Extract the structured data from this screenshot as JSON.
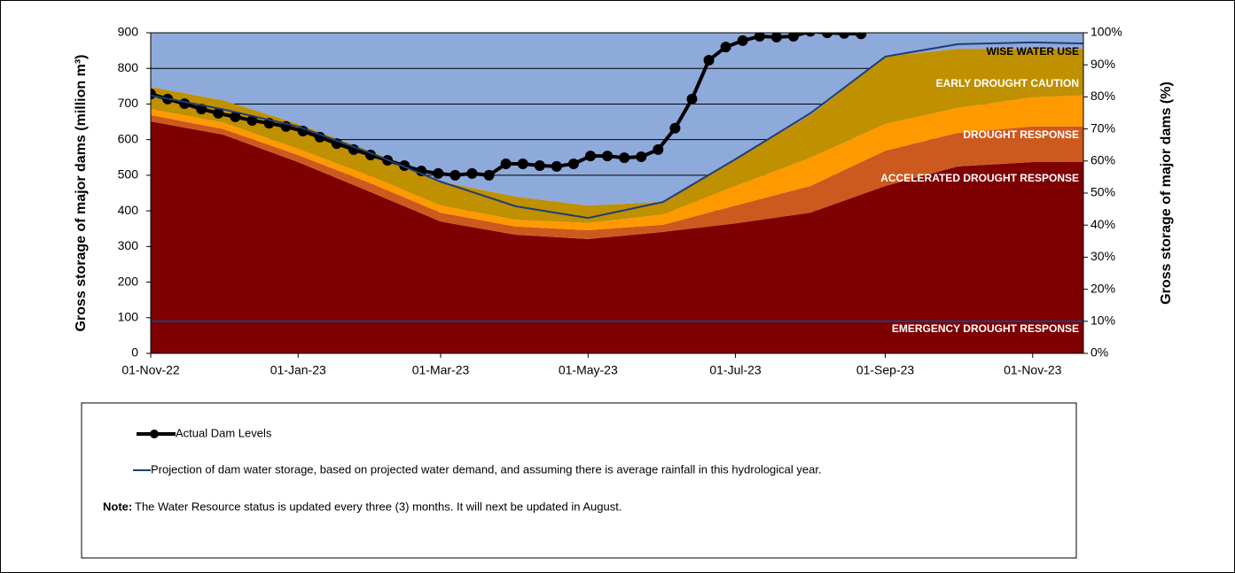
{
  "chart_data": {
    "type": "stacked_area_line",
    "y_label": "Gross storage of major dams (million m³)",
    "y2_label": "Gross storage of major dams (%)",
    "xlim": [
      "2022-11-01",
      "2023-11-22"
    ],
    "xticks": [
      {
        "value": "2022-11-01",
        "label": "01-Nov-22"
      },
      {
        "value": "2023-01-01",
        "label": "01-Jan-23"
      },
      {
        "value": "2023-03-01",
        "label": "01-Mar-23"
      },
      {
        "value": "2023-05-01",
        "label": "01-May-23"
      },
      {
        "value": "2023-07-01",
        "label": "01-Jul-23"
      },
      {
        "value": "2023-09-01",
        "label": "01-Sep-23"
      },
      {
        "value": "2023-11-01",
        "label": "01-Nov-23"
      }
    ],
    "ylim": [
      0,
      900
    ],
    "yticks": [
      0,
      100,
      200,
      300,
      400,
      500,
      600,
      700,
      800,
      900
    ],
    "y2lim": [
      0,
      100
    ],
    "y2ticks": [
      {
        "value": 0,
        "label": "0%"
      },
      {
        "value": 10,
        "label": "10%"
      },
      {
        "value": 20,
        "label": "20%"
      },
      {
        "value": 30,
        "label": "30%"
      },
      {
        "value": 40,
        "label": "40%"
      },
      {
        "value": 50,
        "label": "50%"
      },
      {
        "value": 60,
        "label": "60%"
      },
      {
        "value": 70,
        "label": "70%"
      },
      {
        "value": 80,
        "label": "80%"
      },
      {
        "value": 90,
        "label": "90%"
      },
      {
        "value": 100,
        "label": "100%"
      }
    ],
    "grid": true,
    "x": [
      "2022-11-01",
      "2022-12-01",
      "2023-01-01",
      "2023-02-01",
      "2023-03-01",
      "2023-04-01",
      "2023-05-01",
      "2023-06-01",
      "2023-07-01",
      "2023-08-01",
      "2023-09-01",
      "2023-10-01",
      "2023-11-01",
      "2023-11-22"
    ],
    "areas": [
      {
        "name": "EMERGENCY DROUGHT RESPONSE",
        "color": "#7f0000",
        "values": [
          651,
          614,
          537,
          450,
          370,
          333,
          321,
          341,
          365,
          395,
          470,
          525,
          537,
          537
        ]
      },
      {
        "name": "ACCELERATED DROUGHT RESPONSE",
        "color": "#cc5a1f",
        "values": [
          18,
          16,
          20,
          25,
          25,
          23,
          25,
          20,
          50,
          75,
          99,
          94,
          100,
          100
        ]
      },
      {
        "name": "DROUGHT RESPONSE",
        "color": "#ff9900",
        "values": [
          17,
          18,
          17,
          20,
          20,
          19,
          20,
          29,
          55,
          79,
          75,
          70,
          82,
          87
        ]
      },
      {
        "name": "EARLY DROUGHT CAUTION",
        "color": "#bf9000",
        "values": [
          62,
          62,
          70,
          70,
          67,
          65,
          49,
          35,
          75,
          120,
          189,
          166,
          136,
          131
        ]
      },
      {
        "name": "WISE WATER USE",
        "color": "#8eaadb",
        "values": [
          152,
          190,
          256,
          335,
          418,
          460,
          485,
          475,
          355,
          231,
          67,
          45,
          45,
          45
        ]
      }
    ],
    "reference_line": {
      "value": 90,
      "color": "#1f3d7a"
    },
    "series": [
      {
        "name": "Actual Dam Levels",
        "color": "#000000",
        "markers": true,
        "x": [
          "2022-11-01",
          "2022-11-08",
          "2022-11-15",
          "2022-11-22",
          "2022-11-29",
          "2022-12-06",
          "2022-12-13",
          "2022-12-20",
          "2022-12-27",
          "2023-01-03",
          "2023-01-10",
          "2023-01-17",
          "2023-01-24",
          "2023-01-31",
          "2023-02-07",
          "2023-02-14",
          "2023-02-21",
          "2023-02-28",
          "2023-03-07",
          "2023-03-14",
          "2023-03-21",
          "2023-03-28",
          "2023-04-04",
          "2023-04-11",
          "2023-04-18",
          "2023-04-25",
          "2023-05-02",
          "2023-05-09",
          "2023-05-16",
          "2023-05-23",
          "2023-05-30",
          "2023-06-06",
          "2023-06-13",
          "2023-06-20",
          "2023-06-27",
          "2023-07-04",
          "2023-07-11",
          "2023-07-18",
          "2023-07-25",
          "2023-08-01",
          "2023-08-08",
          "2023-08-15",
          "2023-08-22"
        ],
        "values": [
          728,
          714,
          701,
          686,
          674,
          664,
          654,
          646,
          637,
          624,
          607,
          589,
          572,
          557,
          542,
          527,
          512,
          505,
          500,
          505,
          500,
          532,
          532,
          527,
          525,
          532,
          554,
          554,
          549,
          552,
          572,
          632,
          714,
          823,
          860,
          878,
          890,
          888,
          890,
          904,
          900,
          898,
          897
        ]
      },
      {
        "name": "Projection of dam water storage, based on projected water demand, and assuming there is average rainfall in this hydrological year.",
        "color": "#1f3d7a",
        "markers": false,
        "x": [
          "2022-11-01",
          "2022-12-01",
          "2023-01-01",
          "2023-02-01",
          "2023-03-01",
          "2023-04-01",
          "2023-05-01",
          "2023-06-01",
          "2023-07-01",
          "2023-08-01",
          "2023-09-01",
          "2023-10-01",
          "2023-11-01",
          "2023-11-22"
        ],
        "values": [
          724,
          685,
          637,
          560,
          482,
          413,
          380,
          425,
          545,
          674,
          833,
          868,
          873,
          870
        ]
      }
    ],
    "note": {
      "label": "Note:",
      "text": "The Water Resource status is updated every three (3) months. It will next be updated in August."
    }
  }
}
